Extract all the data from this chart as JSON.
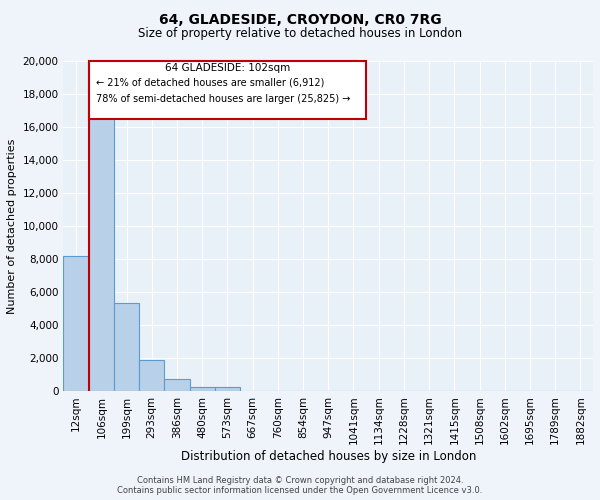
{
  "title": "64, GLADESIDE, CROYDON, CR0 7RG",
  "subtitle": "Size of property relative to detached houses in London",
  "xlabel": "Distribution of detached houses by size in London",
  "ylabel": "Number of detached properties",
  "bar_labels": [
    "12sqm",
    "106sqm",
    "199sqm",
    "293sqm",
    "386sqm",
    "480sqm",
    "573sqm",
    "667sqm",
    "760sqm",
    "854sqm",
    "947sqm",
    "1041sqm",
    "1134sqm",
    "1228sqm",
    "1321sqm",
    "1415sqm",
    "1508sqm",
    "1602sqm",
    "1695sqm",
    "1789sqm",
    "1882sqm"
  ],
  "bar_values": [
    8200,
    16600,
    5300,
    1850,
    750,
    250,
    250,
    0,
    0,
    0,
    0,
    0,
    0,
    0,
    0,
    0,
    0,
    0,
    0,
    0,
    0
  ],
  "bar_color": "#b8d0e8",
  "bar_edge_color": "#5b9bd5",
  "ylim": [
    0,
    20000
  ],
  "yticks": [
    0,
    2000,
    4000,
    6000,
    8000,
    10000,
    12000,
    14000,
    16000,
    18000,
    20000
  ],
  "vline_color": "#c00000",
  "annotation_box_text1": "64 GLADESIDE: 102sqm",
  "annotation_box_text2": "← 21% of detached houses are smaller (6,912)",
  "annotation_box_text3": "78% of semi-detached houses are larger (25,825) →",
  "footer1": "Contains HM Land Registry data © Crown copyright and database right 2024.",
  "footer2": "Contains public sector information licensed under the Open Government Licence v3.0.",
  "bg_color": "#eff3fa",
  "plot_bg_color": "#e8f0f8",
  "grid_color": "#ffffff"
}
